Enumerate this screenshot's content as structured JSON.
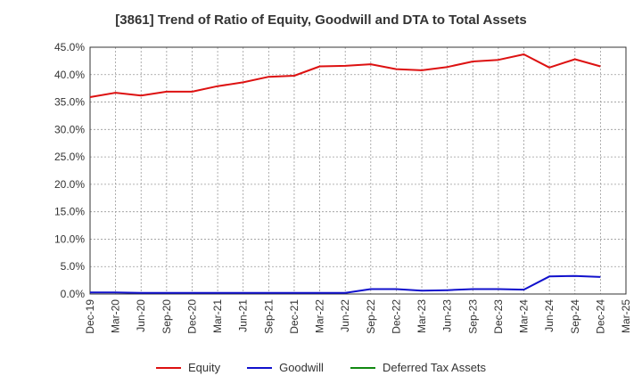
{
  "chart_data": {
    "type": "line",
    "title": "[3861]  Trend of Ratio of Equity, Goodwill and DTA to Total Assets",
    "x": [
      "Dec-19",
      "Mar-20",
      "Jun-20",
      "Sep-20",
      "Dec-20",
      "Mar-21",
      "Jun-21",
      "Sep-21",
      "Dec-21",
      "Mar-22",
      "Jun-22",
      "Sep-22",
      "Dec-22",
      "Mar-23",
      "Jun-23",
      "Sep-23",
      "Dec-23",
      "Mar-24",
      "Jun-24",
      "Sep-24",
      "Dec-24",
      "Mar-25"
    ],
    "ylim": [
      0,
      45
    ],
    "yticks": [
      "0.0%",
      "5.0%",
      "10.0%",
      "15.0%",
      "20.0%",
      "25.0%",
      "30.0%",
      "35.0%",
      "40.0%",
      "45.0%"
    ],
    "grid": true,
    "legend_position": "bottom",
    "series": [
      {
        "name": "Equity",
        "color": "#dd1111",
        "values": [
          35.9,
          36.7,
          36.2,
          36.9,
          36.9,
          37.9,
          38.6,
          39.6,
          39.8,
          41.5,
          41.6,
          41.9,
          41.0,
          40.8,
          41.4,
          42.4,
          42.7,
          43.7,
          41.3,
          42.8,
          41.5,
          null
        ]
      },
      {
        "name": "Goodwill",
        "color": "#1111cc",
        "values": [
          0.3,
          0.3,
          0.2,
          0.2,
          0.2,
          0.2,
          0.2,
          0.2,
          0.2,
          0.2,
          0.2,
          0.9,
          0.9,
          0.6,
          0.7,
          0.9,
          0.9,
          0.8,
          3.2,
          3.3,
          3.1,
          null
        ]
      },
      {
        "name": "Deferred Tax Assets",
        "color": "#118811",
        "values": [
          null,
          null,
          null,
          null,
          null,
          null,
          null,
          null,
          null,
          null,
          null,
          null,
          null,
          null,
          null,
          null,
          null,
          null,
          null,
          null,
          null,
          null
        ]
      }
    ]
  }
}
